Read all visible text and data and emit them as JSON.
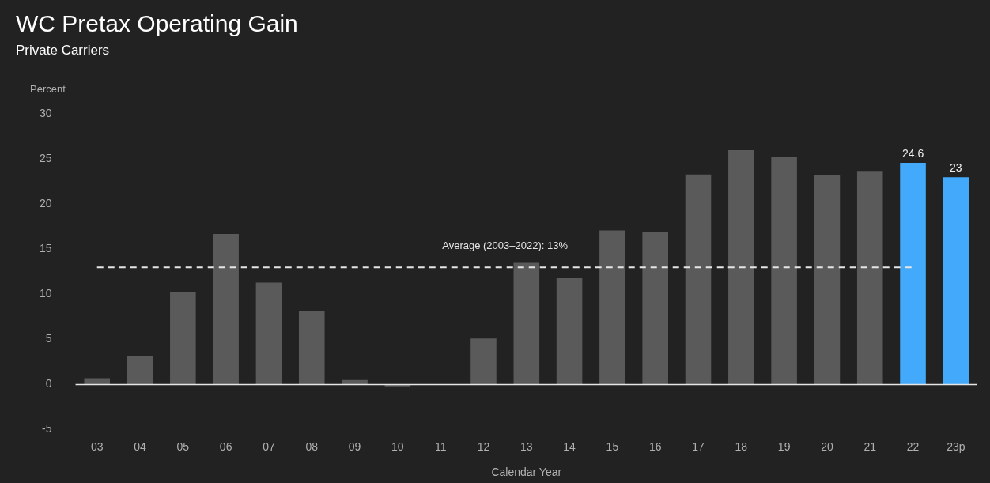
{
  "chart_data": {
    "type": "bar",
    "title": "WC Pretax Operating Gain",
    "subtitle": "Private Carriers",
    "ylabel": "Percent",
    "xlabel": "Calendar Year",
    "categories": [
      "03",
      "04",
      "05",
      "06",
      "07",
      "08",
      "09",
      "10",
      "11",
      "12",
      "13",
      "14",
      "15",
      "16",
      "17",
      "18",
      "19",
      "20",
      "21",
      "22",
      "23p"
    ],
    "values": [
      0.7,
      3.2,
      10.3,
      16.7,
      11.3,
      8.1,
      0.5,
      -0.2,
      0,
      5.1,
      13.5,
      11.8,
      17.1,
      16.9,
      23.3,
      26.0,
      25.2,
      23.2,
      23.7,
      24.6,
      23
    ],
    "colors": [
      "#5a5a5a",
      "#5a5a5a",
      "#5a5a5a",
      "#5a5a5a",
      "#5a5a5a",
      "#5a5a5a",
      "#5a5a5a",
      "#5a5a5a",
      "#5a5a5a",
      "#5a5a5a",
      "#5a5a5a",
      "#5a5a5a",
      "#5a5a5a",
      "#5a5a5a",
      "#5a5a5a",
      "#5a5a5a",
      "#5a5a5a",
      "#5a5a5a",
      "#5a5a5a",
      "#42a9fb",
      "#42a9fb"
    ],
    "value_labels": [
      null,
      null,
      null,
      null,
      null,
      null,
      null,
      null,
      null,
      null,
      null,
      null,
      null,
      null,
      null,
      null,
      null,
      null,
      null,
      "24.6",
      "23"
    ],
    "ylim": [
      -5,
      30
    ],
    "yticks": [
      -5,
      0,
      5,
      10,
      15,
      20,
      25,
      30
    ],
    "legend": false,
    "ref_lines": [
      {
        "axis": "y",
        "value": 13,
        "label": "Average (2003–2022): 13%",
        "color": "#e6e6e6",
        "line_style": "dashed"
      }
    ]
  }
}
